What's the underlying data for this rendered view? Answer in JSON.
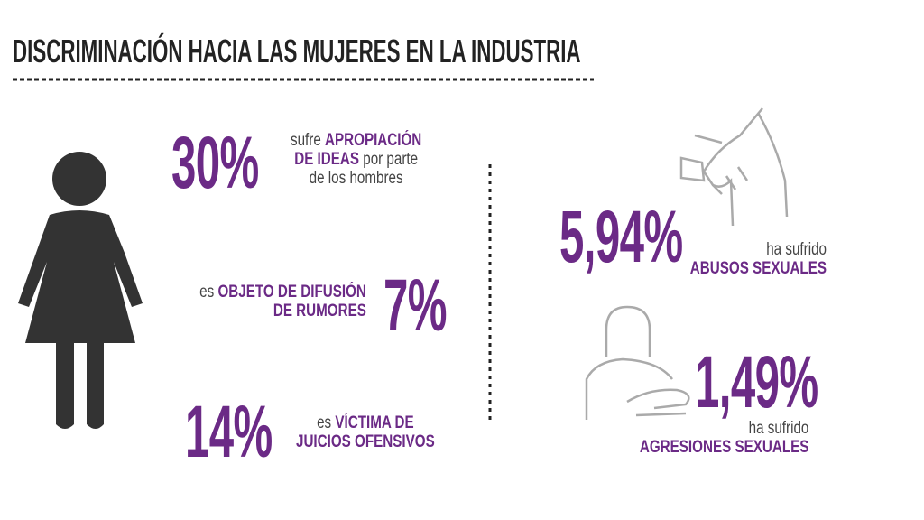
{
  "header": {
    "title": "DISCRIMINACIÓN HACIA LAS MUJERES EN LA INDUSTRIA"
  },
  "stats": [
    {
      "value": "30%",
      "lines": [
        [
          {
            "text": "sufre ",
            "emphasis": false
          },
          {
            "text": "APROPIACIÓN",
            "emphasis": true
          }
        ],
        [
          {
            "text": "DE IDEAS",
            "emphasis": true
          },
          {
            "text": " por parte",
            "emphasis": false
          }
        ],
        [
          {
            "text": "de los hombres",
            "emphasis": false
          }
        ]
      ]
    },
    {
      "value": "7%",
      "lines": [
        [
          {
            "text": "es ",
            "emphasis": false
          },
          {
            "text": "OBJETO DE DIFUSIÓN",
            "emphasis": true
          }
        ],
        [
          {
            "text": "DE RUMORES",
            "emphasis": true
          }
        ]
      ]
    },
    {
      "value": "14%",
      "lines": [
        [
          {
            "text": "es ",
            "emphasis": false
          },
          {
            "text": "VÍCTIMA DE",
            "emphasis": true
          }
        ],
        [
          {
            "text": "JUICIOS OFENSIVOS",
            "emphasis": true
          }
        ]
      ]
    },
    {
      "value": "5,94%",
      "lines": [
        [
          {
            "text": "ha sufrido",
            "emphasis": false
          }
        ],
        [
          {
            "text": "ABUSOS SEXUALES",
            "emphasis": true
          }
        ]
      ]
    },
    {
      "value": "1,49%",
      "lines": [
        [
          {
            "text": "ha sufrido",
            "emphasis": false
          }
        ],
        [
          {
            "text": "AGRESIONES SEXUALES",
            "emphasis": true
          }
        ]
      ]
    }
  ]
}
